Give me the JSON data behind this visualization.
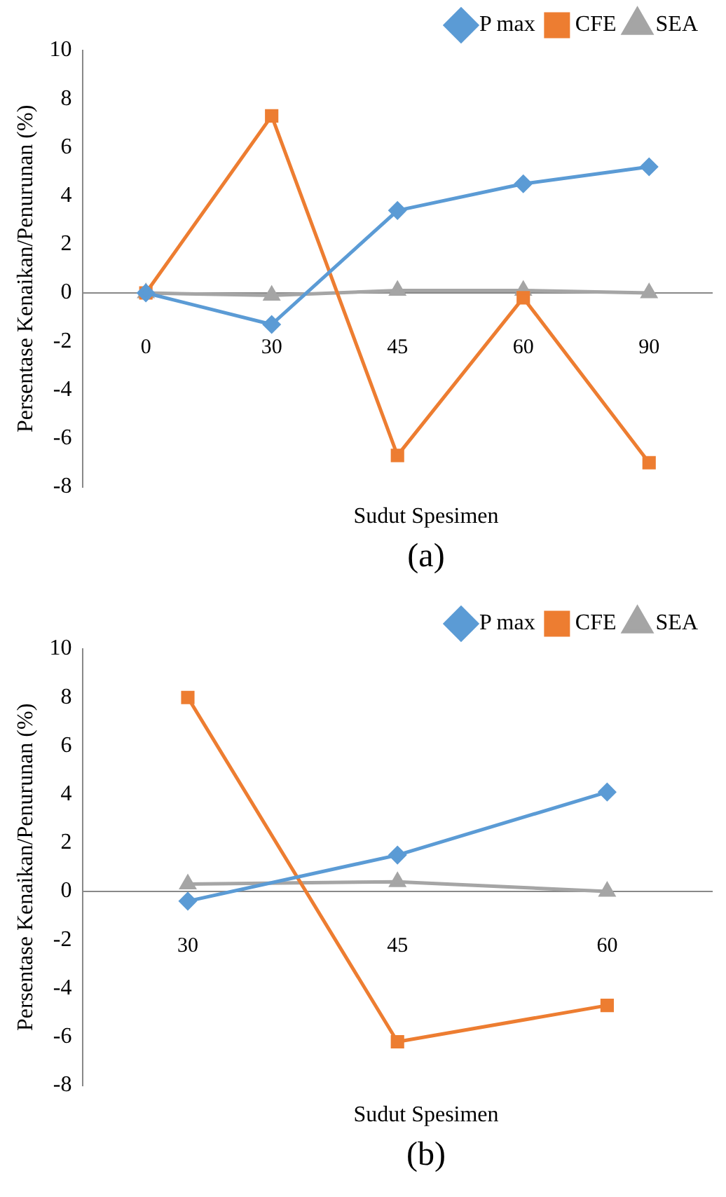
{
  "chart_data": [
    {
      "type": "line",
      "title": "(a)",
      "xlabel": "Sudut Spesimen",
      "ylabel": "Persentase Kenaikan/Penurunan (%)",
      "categories": [
        "0",
        "30",
        "45",
        "60",
        "90"
      ],
      "ylim": [
        -8,
        10
      ],
      "yticks": [
        -8,
        -6,
        -4,
        -2,
        0,
        2,
        4,
        6,
        8,
        10
      ],
      "grid": false,
      "legend": "top right",
      "series": [
        {
          "name": "P max",
          "color": "#5b9bd5",
          "marker": "diamond",
          "values": [
            0,
            -1.3,
            3.4,
            4.5,
            5.2
          ]
        },
        {
          "name": "CFE",
          "color": "#ed7d31",
          "marker": "square",
          "values": [
            0,
            7.3,
            -6.7,
            -0.2,
            -7.0
          ]
        },
        {
          "name": "SEA",
          "color": "#a5a5a5",
          "marker": "triangle",
          "values": [
            0,
            -0.1,
            0.1,
            0.1,
            0
          ]
        }
      ]
    },
    {
      "type": "line",
      "title": "(b)",
      "xlabel": "Sudut Spesimen",
      "ylabel": "Persentase Kenaikan/Penurunan (%)",
      "categories": [
        "30",
        "45",
        "60"
      ],
      "ylim": [
        -8,
        10
      ],
      "yticks": [
        -8,
        -6,
        -4,
        -2,
        0,
        2,
        4,
        6,
        8,
        10
      ],
      "grid": false,
      "legend": "top right",
      "series": [
        {
          "name": "P max",
          "color": "#5b9bd5",
          "marker": "diamond",
          "values": [
            -0.4,
            1.5,
            4.1
          ]
        },
        {
          "name": "CFE",
          "color": "#ed7d31",
          "marker": "square",
          "values": [
            8.0,
            -6.2,
            -4.7
          ]
        },
        {
          "name": "SEA",
          "color": "#a5a5a5",
          "marker": "triangle",
          "values": [
            0.3,
            0.4,
            0.0
          ]
        }
      ]
    }
  ]
}
